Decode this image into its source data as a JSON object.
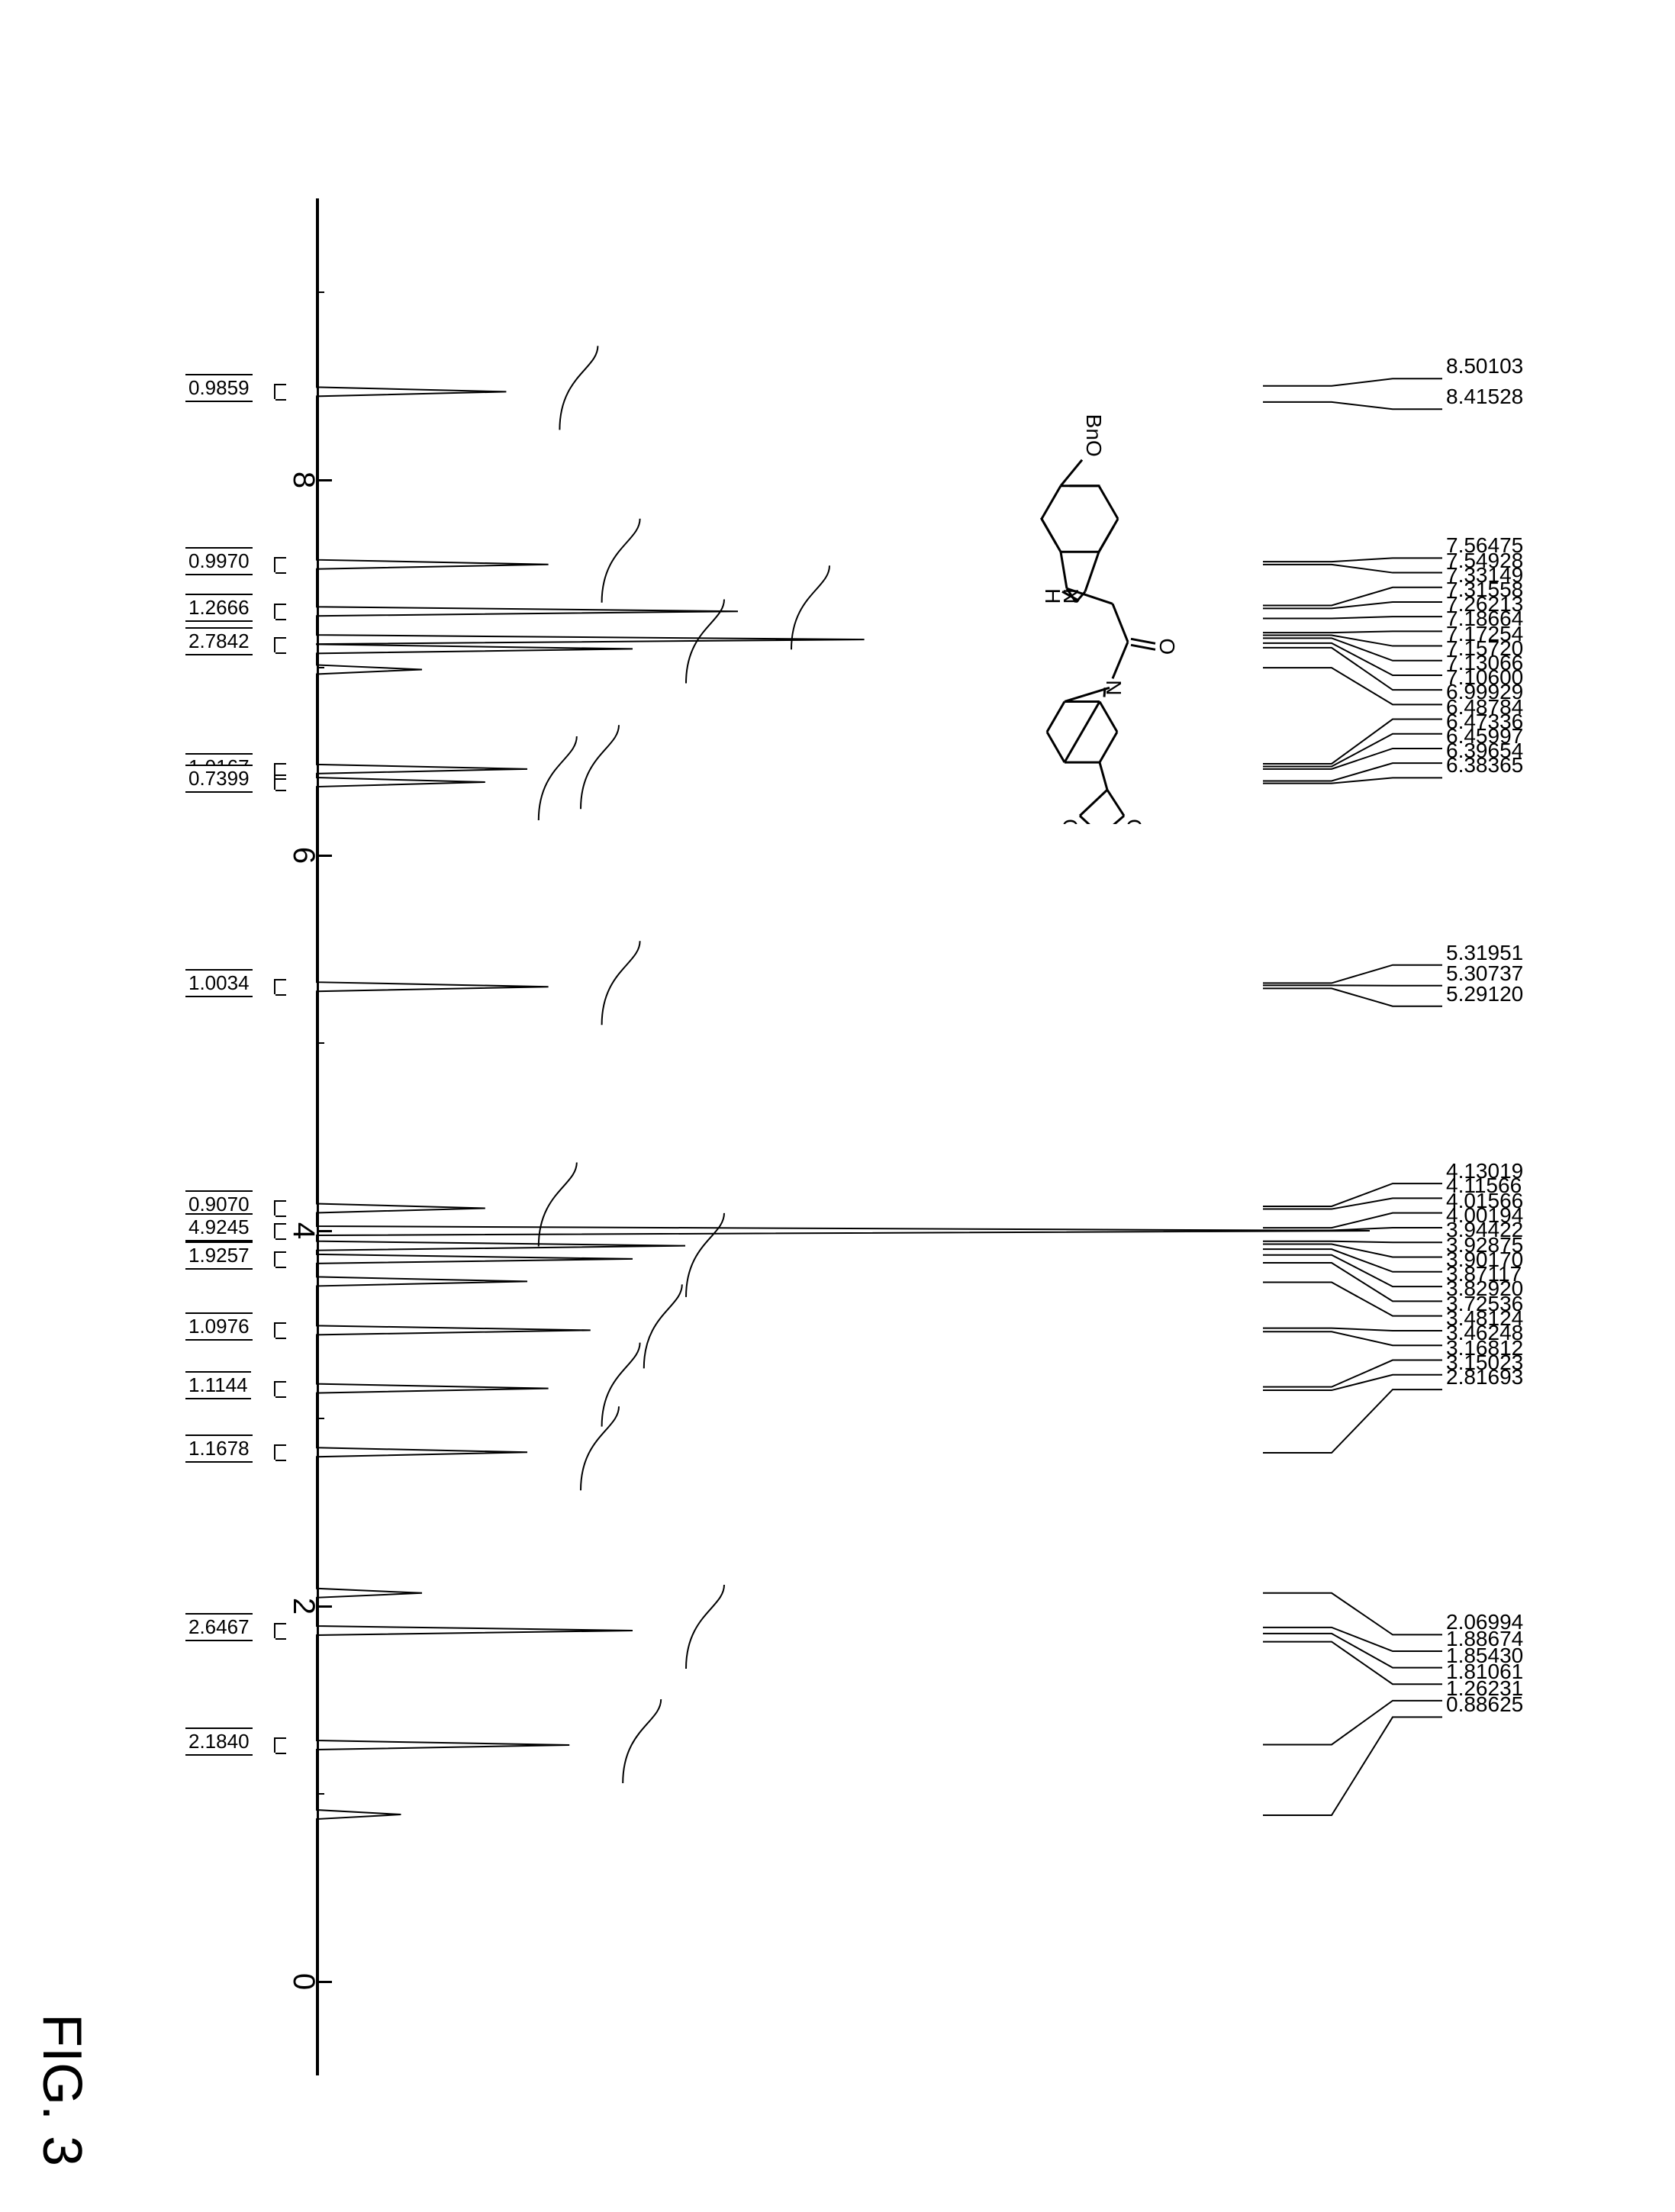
{
  "figure_label": "FIG. 3",
  "spectrum": {
    "type": "nmr-1h",
    "axis": {
      "label": "",
      "min": -0.5,
      "max": 9.5,
      "major_step": 2,
      "minor_step": 1,
      "major_ticks": [
        0,
        2,
        4,
        6,
        8
      ],
      "fontsize": 40,
      "color": "#000000"
    },
    "baseline_y": 0.05,
    "line_color": "#000000",
    "line_width": 2,
    "background": "#ffffff",
    "peaks_ppm": [
      8.50103,
      8.41528,
      7.56475,
      7.54928,
      7.33149,
      7.31558,
      7.26213,
      7.18664,
      7.17254,
      7.1572,
      7.13066,
      7.106,
      6.99929,
      6.48784,
      6.47336,
      6.45997,
      6.39654,
      6.38365,
      5.31951,
      5.30737,
      5.2912,
      4.13019,
      4.11566,
      4.01566,
      4.00194,
      3.94422,
      3.92875,
      3.9017,
      3.87117,
      3.8292,
      3.72536,
      3.48124,
      3.46248,
      3.16812,
      3.15023,
      2.81693,
      2.06994,
      1.88674,
      1.8543,
      1.81061,
      1.26231,
      0.88625
    ],
    "integrals": [
      {
        "ppm": 8.47,
        "value": "0.9859"
      },
      {
        "ppm": 7.55,
        "value": "0.9970"
      },
      {
        "ppm": 7.3,
        "value": "1.2666"
      },
      {
        "ppm": 7.12,
        "value": "2.7842"
      },
      {
        "ppm": 6.45,
        "value": "1.0167"
      },
      {
        "ppm": 6.39,
        "value": "0.7399"
      },
      {
        "ppm": 5.3,
        "value": "1.0034"
      },
      {
        "ppm": 4.12,
        "value": "0.9070"
      },
      {
        "ppm": 4.0,
        "value": "4.9245"
      },
      {
        "ppm": 3.85,
        "value": "1.9257"
      },
      {
        "ppm": 3.47,
        "value": "1.0976"
      },
      {
        "ppm": 3.16,
        "value": "1.1144"
      },
      {
        "ppm": 2.82,
        "value": "1.1678"
      },
      {
        "ppm": 1.87,
        "value": "2.6467"
      },
      {
        "ppm": 1.26,
        "value": "2.1840"
      }
    ],
    "display_peaks": [
      {
        "ppm": 8.47,
        "h": 0.18
      },
      {
        "ppm": 7.55,
        "h": 0.22
      },
      {
        "ppm": 7.3,
        "h": 0.4
      },
      {
        "ppm": 7.15,
        "h": 0.52
      },
      {
        "ppm": 7.1,
        "h": 0.3
      },
      {
        "ppm": 6.99,
        "h": 0.1
      },
      {
        "ppm": 6.46,
        "h": 0.2
      },
      {
        "ppm": 6.39,
        "h": 0.16
      },
      {
        "ppm": 5.3,
        "h": 0.22
      },
      {
        "ppm": 4.12,
        "h": 0.16
      },
      {
        "ppm": 4.0,
        "h": 1.0
      },
      {
        "ppm": 3.92,
        "h": 0.35
      },
      {
        "ppm": 3.85,
        "h": 0.3
      },
      {
        "ppm": 3.73,
        "h": 0.2
      },
      {
        "ppm": 3.47,
        "h": 0.26
      },
      {
        "ppm": 3.16,
        "h": 0.22
      },
      {
        "ppm": 2.82,
        "h": 0.2
      },
      {
        "ppm": 2.07,
        "h": 0.1
      },
      {
        "ppm": 1.87,
        "h": 0.3
      },
      {
        "ppm": 1.26,
        "h": 0.24
      },
      {
        "ppm": 0.89,
        "h": 0.08
      }
    ]
  },
  "structure": {
    "labels": {
      "bno": "BnO",
      "nh": "N",
      "h": "H",
      "o1": "O",
      "o2": "O",
      "o3": "O",
      "n2": "N"
    },
    "stroke": "#000000",
    "stroke_width": 3,
    "fontsize": 28
  }
}
